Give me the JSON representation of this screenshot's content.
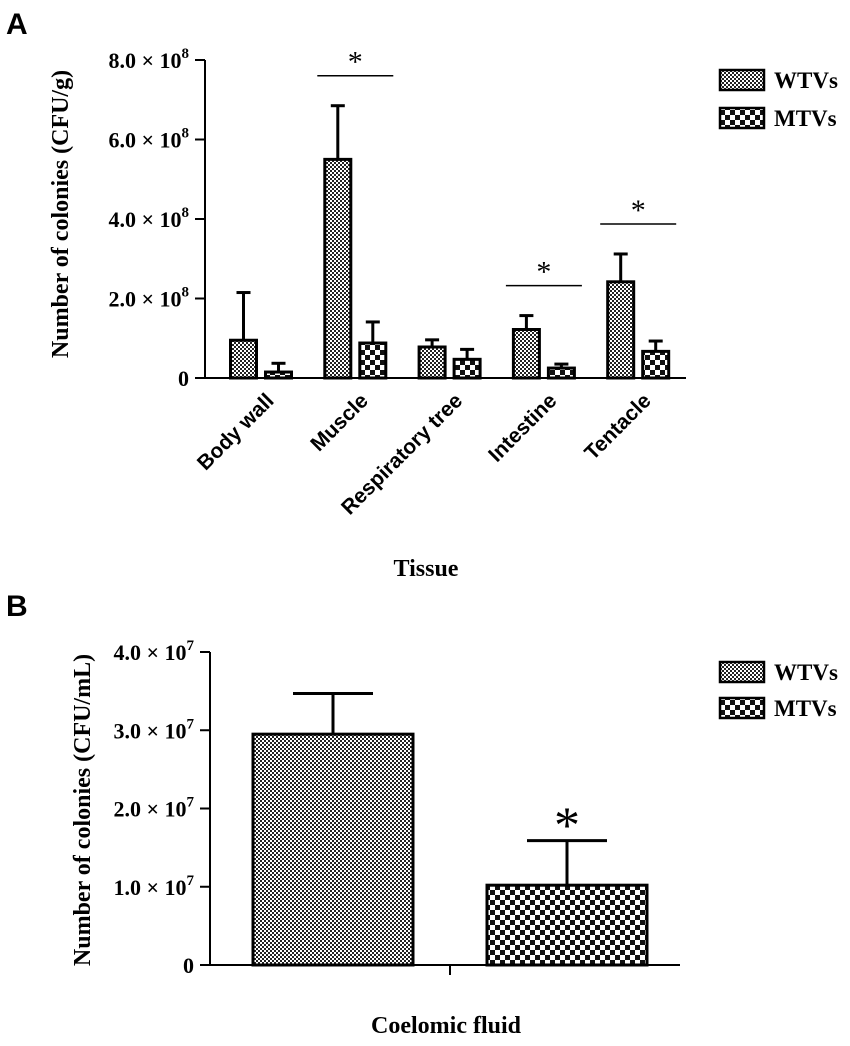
{
  "chart_data": [
    {
      "panel": "A",
      "type": "bar",
      "xlabel": "Tissue",
      "ylabel": "Number of colonies (CFU/g)",
      "ylim": [
        0,
        800000000
      ],
      "yticks": [
        {
          "value": 0,
          "mant": "0",
          "exp": ""
        },
        {
          "value": 200000000,
          "mant": "2.0 × 10",
          "exp": "8"
        },
        {
          "value": 400000000,
          "mant": "4.0 × 10",
          "exp": "8"
        },
        {
          "value": 600000000,
          "mant": "6.0 × 10",
          "exp": "8"
        },
        {
          "value": 800000000,
          "mant": "8.0 × 10",
          "exp": "8"
        }
      ],
      "categories": [
        "Body wall",
        "Muscle",
        "Respiratory tree",
        "Intestine",
        "Tentacle"
      ],
      "series": [
        {
          "name": "WTVs",
          "pattern": "fine-check",
          "values": [
            95000000,
            550000000,
            78000000,
            122000000,
            242000000
          ],
          "errors": [
            120000000,
            135000000,
            18000000,
            35000000,
            70000000
          ]
        },
        {
          "name": "MTVs",
          "pattern": "coarse-check",
          "values": [
            15000000,
            88000000,
            47000000,
            25000000,
            67000000
          ],
          "errors": [
            22000000,
            53000000,
            25000000,
            10000000,
            26000000
          ]
        }
      ],
      "significance": [
        {
          "category": "Muscle",
          "mark": "*"
        },
        {
          "category": "Intestine",
          "mark": "*"
        },
        {
          "category": "Tentacle",
          "mark": "*"
        }
      ],
      "legend_position": "top-right"
    },
    {
      "panel": "B",
      "type": "bar",
      "xlabel": "Coelomic fluid",
      "ylabel": "Number of colonies (CFU/mL)",
      "ylim": [
        0,
        40000000
      ],
      "yticks": [
        {
          "value": 0,
          "mant": "0",
          "exp": ""
        },
        {
          "value": 10000000,
          "mant": "1.0 × 10",
          "exp": "7"
        },
        {
          "value": 20000000,
          "mant": "2.0 × 10",
          "exp": "7"
        },
        {
          "value": 30000000,
          "mant": "3.0 × 10",
          "exp": "7"
        },
        {
          "value": 40000000,
          "mant": "4.0 × 10",
          "exp": "7"
        }
      ],
      "categories": [
        ""
      ],
      "series": [
        {
          "name": "WTVs",
          "pattern": "fine-check",
          "values": [
            29500000
          ],
          "errors": [
            5200000
          ]
        },
        {
          "name": "MTVs",
          "pattern": "coarse-check",
          "values": [
            10200000
          ],
          "errors": [
            5700000
          ]
        }
      ],
      "significance": [
        {
          "series": "MTVs",
          "mark": "*"
        }
      ],
      "legend_position": "top-right"
    }
  ]
}
